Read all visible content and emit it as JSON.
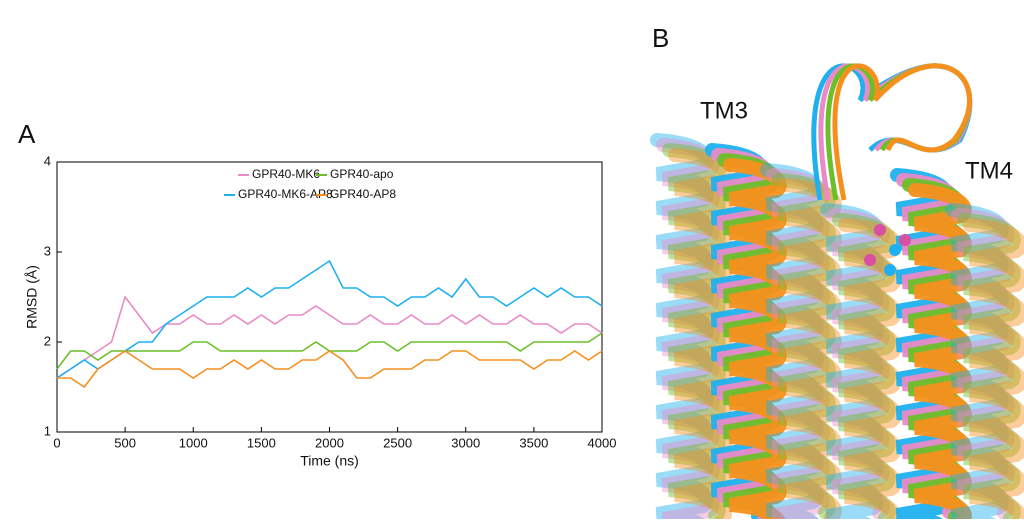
{
  "panel_label": "A",
  "chart_data": {
    "type": "line",
    "xlabel": "Time (ns)",
    "ylabel": "RMSD (Å)",
    "xlim": [
      0,
      4000
    ],
    "xticks": [
      0,
      500,
      1000,
      1500,
      2000,
      2500,
      3000,
      3500,
      4000
    ],
    "ylim": [
      1,
      4
    ],
    "yticks": [
      1,
      2,
      3,
      4
    ],
    "x": [
      0,
      100,
      200,
      300,
      400,
      500,
      600,
      700,
      800,
      900,
      1000,
      1100,
      1200,
      1300,
      1400,
      1500,
      1600,
      1700,
      1800,
      1900,
      2000,
      2100,
      2200,
      2300,
      2400,
      2500,
      2600,
      2700,
      2800,
      2900,
      3000,
      3100,
      3200,
      3300,
      3400,
      3500,
      3600,
      3700,
      3800,
      3900,
      4000
    ],
    "series": [
      {
        "name": "GPR40-MK6",
        "color": "#e98bc6",
        "values": [
          1.6,
          1.7,
          1.8,
          1.9,
          2.0,
          2.5,
          2.3,
          2.1,
          2.2,
          2.2,
          2.3,
          2.2,
          2.2,
          2.3,
          2.2,
          2.3,
          2.2,
          2.3,
          2.3,
          2.4,
          2.3,
          2.2,
          2.2,
          2.3,
          2.2,
          2.2,
          2.3,
          2.2,
          2.2,
          2.3,
          2.2,
          2.3,
          2.2,
          2.2,
          2.3,
          2.2,
          2.2,
          2.1,
          2.2,
          2.2,
          2.1
        ]
      },
      {
        "name": "GPR40-apo",
        "color": "#6cbf2a",
        "values": [
          1.7,
          1.9,
          1.9,
          1.8,
          1.9,
          1.9,
          1.9,
          1.9,
          1.9,
          1.9,
          2.0,
          2.0,
          1.9,
          1.9,
          1.9,
          1.9,
          1.9,
          1.9,
          1.9,
          2.0,
          1.9,
          1.9,
          1.9,
          2.0,
          2.0,
          1.9,
          2.0,
          2.0,
          2.0,
          2.0,
          2.0,
          2.0,
          2.0,
          2.0,
          1.9,
          2.0,
          2.0,
          2.0,
          2.0,
          2.0,
          2.1
        ]
      },
      {
        "name": "GPR40-MK6-AP8",
        "color": "#1fb0ef",
        "values": [
          1.6,
          1.7,
          1.8,
          1.7,
          1.8,
          1.9,
          2.0,
          2.0,
          2.2,
          2.3,
          2.4,
          2.5,
          2.5,
          2.5,
          2.6,
          2.5,
          2.6,
          2.6,
          2.7,
          2.8,
          2.9,
          2.6,
          2.6,
          2.5,
          2.5,
          2.4,
          2.5,
          2.5,
          2.6,
          2.5,
          2.7,
          2.5,
          2.5,
          2.4,
          2.5,
          2.6,
          2.5,
          2.6,
          2.5,
          2.5,
          2.4
        ]
      },
      {
        "name": "GPR40-AP8",
        "color": "#f5901e",
        "values": [
          1.6,
          1.6,
          1.5,
          1.7,
          1.8,
          1.9,
          1.8,
          1.7,
          1.7,
          1.7,
          1.6,
          1.7,
          1.7,
          1.8,
          1.7,
          1.8,
          1.7,
          1.7,
          1.8,
          1.8,
          1.9,
          1.8,
          1.6,
          1.6,
          1.7,
          1.7,
          1.7,
          1.8,
          1.8,
          1.9,
          1.9,
          1.8,
          1.8,
          1.8,
          1.8,
          1.7,
          1.8,
          1.8,
          1.9,
          1.8,
          1.9
        ]
      }
    ]
  },
  "structure": {
    "label": "B",
    "annotations": [
      "TM3",
      "TM4"
    ]
  }
}
